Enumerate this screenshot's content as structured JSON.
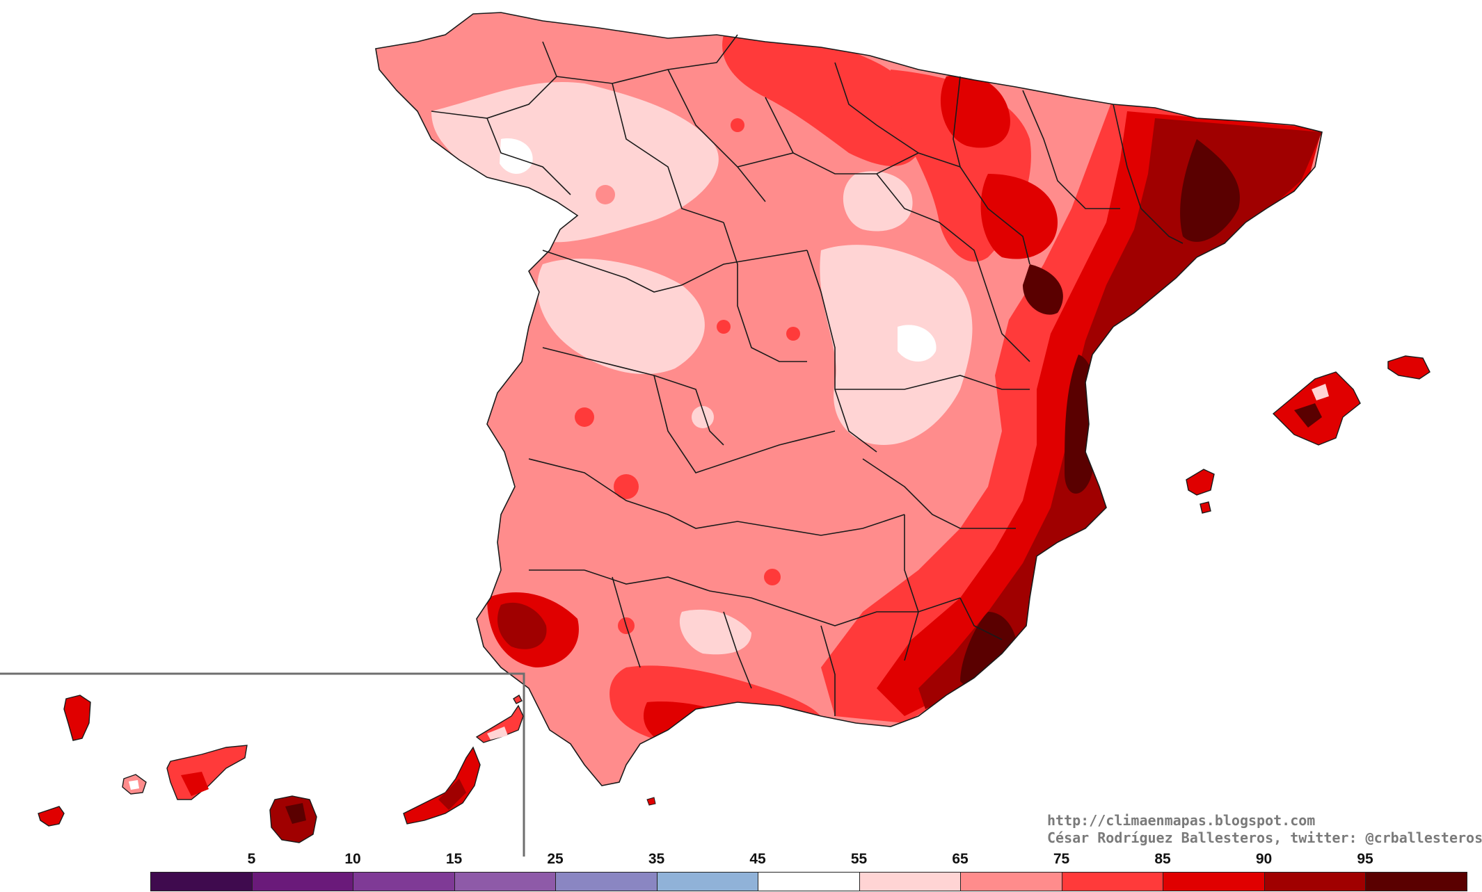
{
  "credits": {
    "url": "http://climaenmapas.blogspot.com",
    "author": "César Rodríguez Ballesteros, twitter: @crballesteros"
  },
  "legend": {
    "labels": [
      "5",
      "10",
      "15",
      "25",
      "35",
      "45",
      "55",
      "65",
      "75",
      "85",
      "90",
      "95"
    ],
    "colors": [
      "#3f0a4e",
      "#6a1a7a",
      "#7f3a96",
      "#8e5aa8",
      "#8a86c2",
      "#90b2d8",
      "#ffffff",
      "#ffd4d4",
      "#ff8c8c",
      "#ff3a3a",
      "#e00000",
      "#a00000",
      "#5a0000"
    ]
  },
  "map": {
    "region": "Spain",
    "inset_region": "Canary Islands",
    "colors": {
      "border": "#1a1a1a",
      "inset_frame": "#6e6e6e",
      "c_white": "#ffffff",
      "c_pale": "#ffd4d4",
      "c_light": "#ff8c8c",
      "c_red": "#ff3a3a",
      "c_strong": "#e00000",
      "c_dark": "#a00000",
      "c_darkest": "#5a0000"
    }
  }
}
